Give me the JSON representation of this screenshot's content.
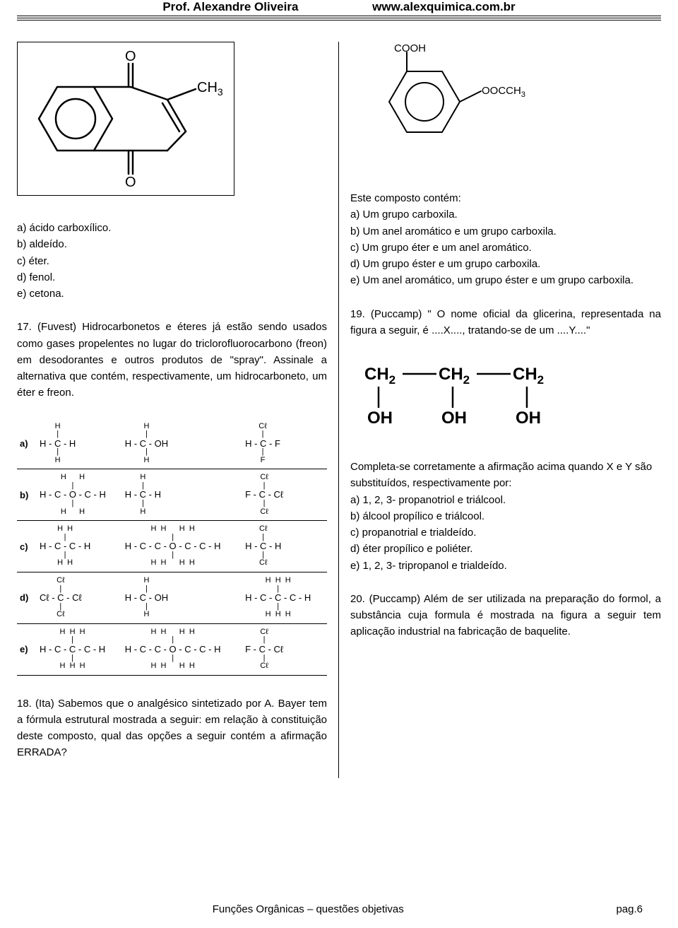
{
  "header": {
    "left": "Prof. Alexandre Oliveira",
    "right": "www.alexquimica.com.br"
  },
  "footer": {
    "title": "Funções Orgânicas – questões objetivas",
    "page": "pag.6"
  },
  "colors": {
    "text": "#000000",
    "background": "#ffffff",
    "border": "#000000"
  },
  "left": {
    "q16_options": {
      "a": "a) ácido carboxílico.",
      "b": "b) aldeído.",
      "c": "c) éter.",
      "d": "d) fenol.",
      "e": "e) cetona."
    },
    "q17": "17. (Fuvest) Hidrocarbonetos e éteres já estão sendo usados como gases propelentes no lugar do triclorofluorocarbono (freon) em desodorantes e outros produtos de \"spray\". Assinale a alternativa que contém, respectivamente, um hidrocarboneto, um éter e freon.",
    "q17_table": {
      "rows": [
        {
          "label": "a)",
          "c1_top": "H",
          "c1_mid": "H - C - H",
          "c1_bot": "H",
          "c2_top": "H",
          "c2_mid": "H - C - OH",
          "c2_bot": "H",
          "c3_top": "Cℓ",
          "c3_mid": "H - C - F",
          "c3_bot": "F"
        },
        {
          "label": "b)",
          "c1_top": "H      H",
          "c1_mid": "H - C - O - C - H",
          "c1_bot": "H      H",
          "c2_top": "H",
          "c2_mid": "H - C - H",
          "c2_bot": "H",
          "c3_top": "Cℓ",
          "c3_mid": "F - C - Cℓ",
          "c3_bot": "Cℓ"
        },
        {
          "label": "c)",
          "c1_top": "H  H",
          "c1_mid": "H - C - C - H",
          "c1_bot": "H  H",
          "c2_top": "H  H      H  H",
          "c2_mid": "H - C - C - O - C - C - H",
          "c2_bot": "H  H      H  H",
          "c3_top": "Cℓ",
          "c3_mid": "H - C - H",
          "c3_bot": "Cℓ"
        },
        {
          "label": "d)",
          "c1_top": "Cℓ",
          "c1_mid": "Cℓ - C - Cℓ",
          "c1_bot": "Cℓ",
          "c2_top": "H",
          "c2_mid": "H - C - OH",
          "c2_bot": "H",
          "c3_top": "H  H  H",
          "c3_mid": "H - C - C - C - H",
          "c3_bot": "H  H  H"
        },
        {
          "label": "e)",
          "c1_top": "H  H  H",
          "c1_mid": "H - C - C - C - H",
          "c1_bot": "H  H  H",
          "c2_top": "H  H      H  H",
          "c2_mid": "H - C - C - O - C - C - H",
          "c2_bot": "H  H      H  H",
          "c3_top": "Cℓ",
          "c3_mid": "F - C - Cℓ",
          "c3_bot": "Cℓ"
        }
      ]
    },
    "q18": "18. (Ita) Sabemos que o analgésico sintetizado por A. Bayer tem a fórmula estrutural mostrada a seguir: em relação à constituição deste composto, qual das opções a seguir contém a afirmação ERRADA?",
    "structure16": {
      "description": "2-methylnaphthoquinone skeletal structure",
      "labels": {
        "top_oxygen": "O",
        "bottom_oxygen": "O",
        "methyl": "CH",
        "methyl_sub": "3"
      },
      "line_color": "#000000",
      "line_width": 2
    }
  },
  "right": {
    "structure18": {
      "description": "aspirin skeletal structure (benzene with COOH and OOCCH3)",
      "labels": {
        "cooh": "COOH",
        "oocch3": "OOCCH",
        "oocch3_sub": "3"
      },
      "line_color": "#000000",
      "line_width": 2
    },
    "q18_intro": "Este composto contém:",
    "q18_options": {
      "a": "a) Um grupo carboxila.",
      "b": "b) Um anel aromático e um grupo carboxila.",
      "c": "c) Um grupo éter e um anel aromático.",
      "d": "d) Um grupo éster e um grupo carboxila.",
      "e": "e) Um anel aromático, um grupo éster e um grupo carboxila."
    },
    "q19": "19. (Puccamp) \" O nome oficial da glicerina, representada na figura a seguir, é ....X...., tratando-se de um ....Y....\"",
    "structure19": {
      "description": "glycerol structural formula",
      "top_line": "CH2 — CH2 — CH2",
      "bottom_line": "OH        OH        OH",
      "sub": "2",
      "font_size": 22,
      "font_weight": "bold"
    },
    "q19_intro": "Completa-se corretamente a afirmação acima quando X e Y são substituídos, respectivamente por:",
    "q19_options": {
      "a": "a) 1, 2, 3- propanotriol e triálcool.",
      "b": "b) álcool propílico e triálcool.",
      "c": "c) propanotrial e trialdeído.",
      "d": "d) éter propílico e poliéter.",
      "e": "e) 1, 2, 3- tripropanol e trialdeído."
    },
    "q20": "20. (Puccamp) Além de ser utilizada na preparação do formol, a substância cuja formula é mostrada na figura a seguir tem aplicação industrial na fabricação de baquelite."
  }
}
